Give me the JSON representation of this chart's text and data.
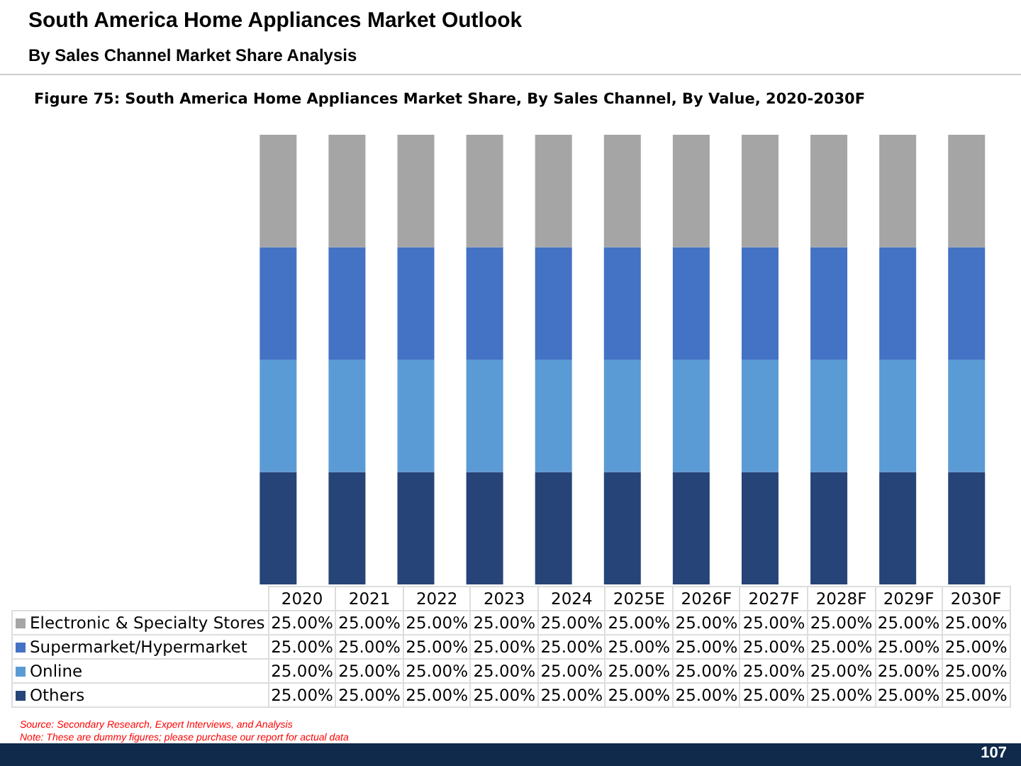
{
  "chart_data": {
    "type": "bar",
    "title": "South America Home Appliances Market Outlook",
    "subtitle": "By Sales Channel Market Share Analysis",
    "xlabel": "Figure 75: South America Home Appliances Market Share, By Sales Channel, By Value, 2020-2030F",
    "categories": [
      "2020",
      "2021",
      "2022",
      "2023",
      "2024",
      "2025E",
      "2026F",
      "2027F",
      "2028F",
      "2029F",
      "2030F"
    ],
    "stacked": true,
    "ylim": [
      0,
      100
    ],
    "legend": "bottom",
    "grid": false,
    "series": [
      {
        "name": "Others",
        "color": "#264478",
        "values": [
          25,
          25,
          25,
          25,
          25,
          25,
          25,
          25,
          25,
          25,
          25
        ],
        "value_labels": [
          "25.00%",
          "25.00%",
          "25.00%",
          "25.00%",
          "25.00%",
          "25.00%",
          "25.00%",
          "25.00%",
          "25.00%",
          "25.00%",
          "25.00%"
        ]
      },
      {
        "name": "Online",
        "color": "#5b9bd5",
        "values": [
          25,
          25,
          25,
          25,
          25,
          25,
          25,
          25,
          25,
          25,
          25
        ],
        "value_labels": [
          "25.00%",
          "25.00%",
          "25.00%",
          "25.00%",
          "25.00%",
          "25.00%",
          "25.00%",
          "25.00%",
          "25.00%",
          "25.00%",
          "25.00%"
        ]
      },
      {
        "name": "Supermarket/Hypermarket",
        "color": "#4472c4",
        "values": [
          25,
          25,
          25,
          25,
          25,
          25,
          25,
          25,
          25,
          25,
          25
        ],
        "value_labels": [
          "25.00%",
          "25.00%",
          "25.00%",
          "25.00%",
          "25.00%",
          "25.00%",
          "25.00%",
          "25.00%",
          "25.00%",
          "25.00%",
          "25.00%"
        ]
      },
      {
        "name": "Electronic & Specialty Stores",
        "color": "#a5a5a5",
        "values": [
          25,
          25,
          25,
          25,
          25,
          25,
          25,
          25,
          25,
          25,
          25
        ],
        "value_labels": [
          "25.00%",
          "25.00%",
          "25.00%",
          "25.00%",
          "25.00%",
          "25.00%",
          "25.00%",
          "25.00%",
          "25.00%",
          "25.00%",
          "25.00%"
        ]
      }
    ],
    "annotations": [
      "Source: Secondary Research, Expert Interviews, and Analysis",
      "Note: These are dummy figures; please purchase our report for actual data",
      "107"
    ]
  }
}
